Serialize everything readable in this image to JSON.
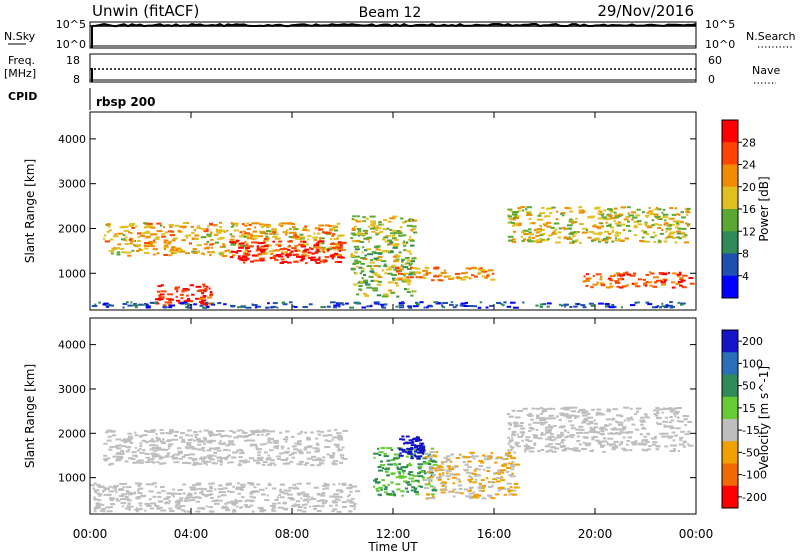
{
  "header": {
    "title": "Unwin (fitACF)",
    "beam": "Beam 12",
    "date": "29/Nov/2016"
  },
  "info_panels": {
    "nsky_label": "N.Sky",
    "nsearch_label": "N.Search",
    "count_ticks": [
      "10^5",
      "10^0"
    ],
    "freq_label": "Freq.",
    "freq_unit": "[MHz]",
    "freq_ticks": [
      "18",
      "8"
    ],
    "nave_label": "Nave",
    "nave_ticks": [
      "60",
      "0"
    ],
    "cpid_label": "CPID",
    "cpid_value": "rbsp 200"
  },
  "colors": {
    "power_scale": [
      "#0000ff",
      "#1f4fb0",
      "#2e8b57",
      "#5aa832",
      "#e0c020",
      "#f08c00",
      "#ff4400",
      "#ff0000"
    ],
    "velocity_scale": [
      "#1515c8",
      "#2a6fb8",
      "#2e8b57",
      "#66cc33",
      "#bebebe",
      "#f0a000",
      "#f06a00",
      "#ff0000"
    ],
    "ground_scatter": "#bebebe"
  },
  "chart_data": [
    {
      "type": "heatmap",
      "name": "power",
      "xlabel": "",
      "ylabel": "Slant Range [km]",
      "x_ticks": [
        "00:00",
        "04:00",
        "08:00",
        "12:00",
        "16:00",
        "20:00",
        "00:00"
      ],
      "x_range_hours": [
        0,
        24
      ],
      "y_ticks": [
        1000,
        2000,
        3000,
        4000
      ],
      "ylim": [
        180,
        4600
      ],
      "colorbar": {
        "label": "Power [dB]",
        "ticks": [
          4,
          8,
          12,
          16,
          20,
          24,
          28
        ],
        "range": [
          0,
          32
        ]
      },
      "features": [
        {
          "x_start": 0.5,
          "x_end": 10.0,
          "y_start": 1400,
          "y_end": 2150,
          "value": 20
        },
        {
          "x_start": 5.5,
          "x_end": 10.0,
          "y_start": 1250,
          "y_end": 1750,
          "value": 30
        },
        {
          "x_start": 2.5,
          "x_end": 4.8,
          "y_start": 300,
          "y_end": 800,
          "value": 27
        },
        {
          "x_start": 0.0,
          "x_end": 24.0,
          "y_start": 250,
          "y_end": 380,
          "value": 6
        },
        {
          "x_start": 10.3,
          "x_end": 12.8,
          "y_start": 500,
          "y_end": 2300,
          "value": 16
        },
        {
          "x_start": 12.0,
          "x_end": 16.0,
          "y_start": 850,
          "y_end": 1150,
          "value": 22
        },
        {
          "x_start": 16.5,
          "x_end": 23.7,
          "y_start": 1700,
          "y_end": 2500,
          "value": 18
        },
        {
          "x_start": 19.5,
          "x_end": 23.8,
          "y_start": 700,
          "y_end": 1050,
          "value": 26
        }
      ]
    },
    {
      "type": "heatmap",
      "name": "velocity",
      "xlabel": "Time UT",
      "ylabel": "Slant Range [km]",
      "x_ticks": [
        "00:00",
        "04:00",
        "08:00",
        "12:00",
        "16:00",
        "20:00",
        "00:00"
      ],
      "x_range_hours": [
        0,
        24
      ],
      "y_ticks": [
        1000,
        2000,
        3000,
        4000
      ],
      "ylim": [
        180,
        4600
      ],
      "colorbar": {
        "label": "Velocity [m s^-1]",
        "ticks": [
          200,
          100,
          50,
          15,
          -15,
          -50,
          -100,
          -200
        ],
        "range": [
          -250,
          250
        ]
      },
      "features": [
        {
          "x_start": 0.5,
          "x_end": 10.0,
          "y_start": 1300,
          "y_end": 2100,
          "value": 0
        },
        {
          "x_start": 0.0,
          "x_end": 10.5,
          "y_start": 250,
          "y_end": 900,
          "value": 0
        },
        {
          "x_start": 16.5,
          "x_end": 23.7,
          "y_start": 1600,
          "y_end": 2600,
          "value": 0
        },
        {
          "x_start": 11.2,
          "x_end": 13.6,
          "y_start": 600,
          "y_end": 1700,
          "value": 60
        },
        {
          "x_start": 12.2,
          "x_end": 13.2,
          "y_start": 1450,
          "y_end": 1950,
          "value": 230
        },
        {
          "x_start": 13.2,
          "x_end": 16.8,
          "y_start": 550,
          "y_end": 1600,
          "value": -60
        }
      ]
    }
  ]
}
